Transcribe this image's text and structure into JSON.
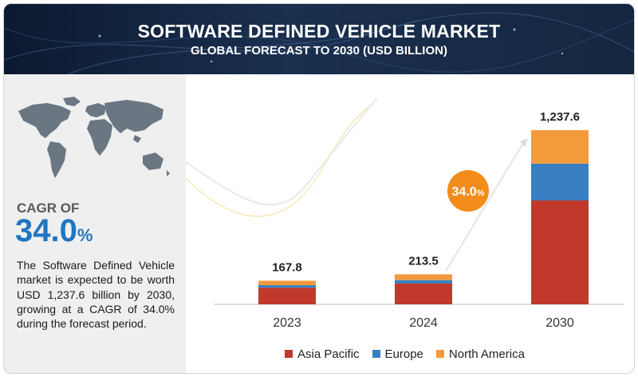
{
  "header": {
    "title": "SOFTWARE DEFINED VEHICLE MARKET",
    "subtitle": "GLOBAL FORECAST TO 2030 (USD BILLION)"
  },
  "sidebar": {
    "cagr_label": "CAGR OF",
    "cagr_value": "34.0",
    "cagr_unit": "%",
    "description": "The Software Defined Vehicle market is expected to be worth USD 1,237.6 billion by 2030, growing at a CAGR of 34.0% during the forecast period."
  },
  "chart_data": {
    "type": "bar",
    "stacked": true,
    "title": "SOFTWARE DEFINED VEHICLE MARKET",
    "subtitle": "GLOBAL FORECAST TO 2030 (USD BILLION)",
    "categories": [
      "2023",
      "2024",
      "2030"
    ],
    "totals": [
      167.8,
      213.5,
      1237.6
    ],
    "total_labels": [
      "167.8",
      "213.5",
      "1,237.6"
    ],
    "series": [
      {
        "name": "Asia Pacific",
        "color": "#c0392b",
        "values": [
          118,
          148,
          738
        ]
      },
      {
        "name": "Europe",
        "color": "#3a7fc1",
        "values": [
          18,
          24,
          262
        ]
      },
      {
        "name": "North America",
        "color": "#f39a3d",
        "values": [
          31.8,
          41.5,
          237.6
        ]
      }
    ],
    "annotation": {
      "label": "34.0",
      "unit": "%",
      "color": "#f28c1b"
    },
    "ylim": [
      0,
      1237.6
    ],
    "grid": false,
    "legend_position": "bottom"
  }
}
